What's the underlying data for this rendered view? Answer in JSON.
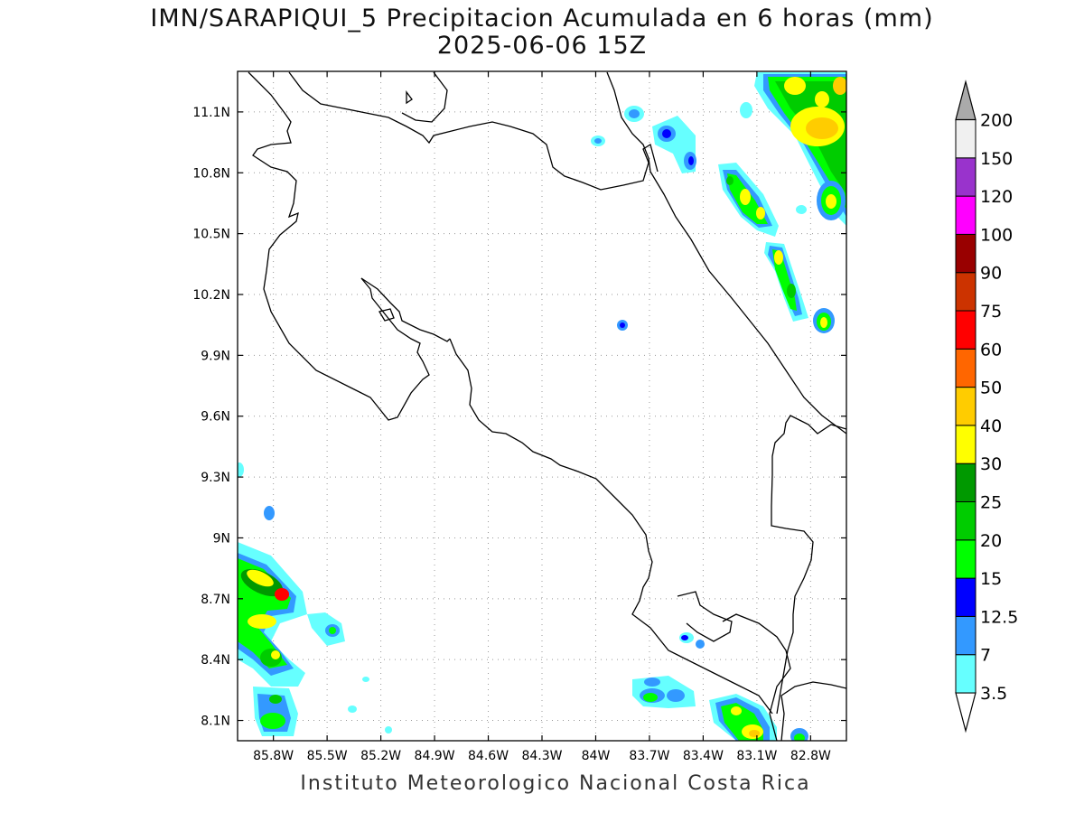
{
  "title": {
    "line1": "IMN/SARAPIQUI_5 Precipitacion Acumulada en 6 horas (mm)",
    "line2": "2025-06-06 15Z"
  },
  "credit": "Instituto Meteorologico Nacional Costa Rica",
  "map": {
    "lon_range": [
      -86.0,
      -82.6
    ],
    "lat_range": [
      8.0,
      11.3
    ],
    "lat_ticks": [
      {
        "v": 11.1,
        "label": "11.1N"
      },
      {
        "v": 10.8,
        "label": "10.8N"
      },
      {
        "v": 10.5,
        "label": "10.5N"
      },
      {
        "v": 10.2,
        "label": "10.2N"
      },
      {
        "v": 9.9,
        "label": "9.9N"
      },
      {
        "v": 9.6,
        "label": "9.6N"
      },
      {
        "v": 9.3,
        "label": "9.3N"
      },
      {
        "v": 9.0,
        "label": "9N"
      },
      {
        "v": 8.7,
        "label": "8.7N"
      },
      {
        "v": 8.4,
        "label": "8.4N"
      },
      {
        "v": 8.1,
        "label": "8.1N"
      }
    ],
    "lon_ticks": [
      {
        "v": -85.8,
        "label": "85.8W"
      },
      {
        "v": -85.5,
        "label": "85.5W"
      },
      {
        "v": -85.2,
        "label": "85.2W"
      },
      {
        "v": -84.9,
        "label": "84.9W"
      },
      {
        "v": -84.6,
        "label": "84.6W"
      },
      {
        "v": -84.3,
        "label": "84.3W"
      },
      {
        "v": -84.0,
        "label": "84W"
      },
      {
        "v": -83.7,
        "label": "83.7W"
      },
      {
        "v": -83.4,
        "label": "83.4W"
      },
      {
        "v": -83.1,
        "label": "83.1W"
      },
      {
        "v": -82.8,
        "label": "82.8W"
      }
    ],
    "grid": "dotted"
  },
  "colorbar": {
    "units": "mm",
    "levels": [
      "3.5",
      "7",
      "12.5",
      "15",
      "20",
      "25",
      "30",
      "40",
      "50",
      "60",
      "75",
      "90",
      "100",
      "120",
      "150",
      "200"
    ],
    "colors": [
      "#66ffff",
      "#3399ff",
      "#0000ff",
      "#00ff00",
      "#00cc00",
      "#009900",
      "#ffff00",
      "#ffcc00",
      "#ff6600",
      "#ff0000",
      "#cc3300",
      "#990000",
      "#ff00ff",
      "#9933cc",
      "#f0f0f0",
      "#aaaaaa"
    ]
  }
}
